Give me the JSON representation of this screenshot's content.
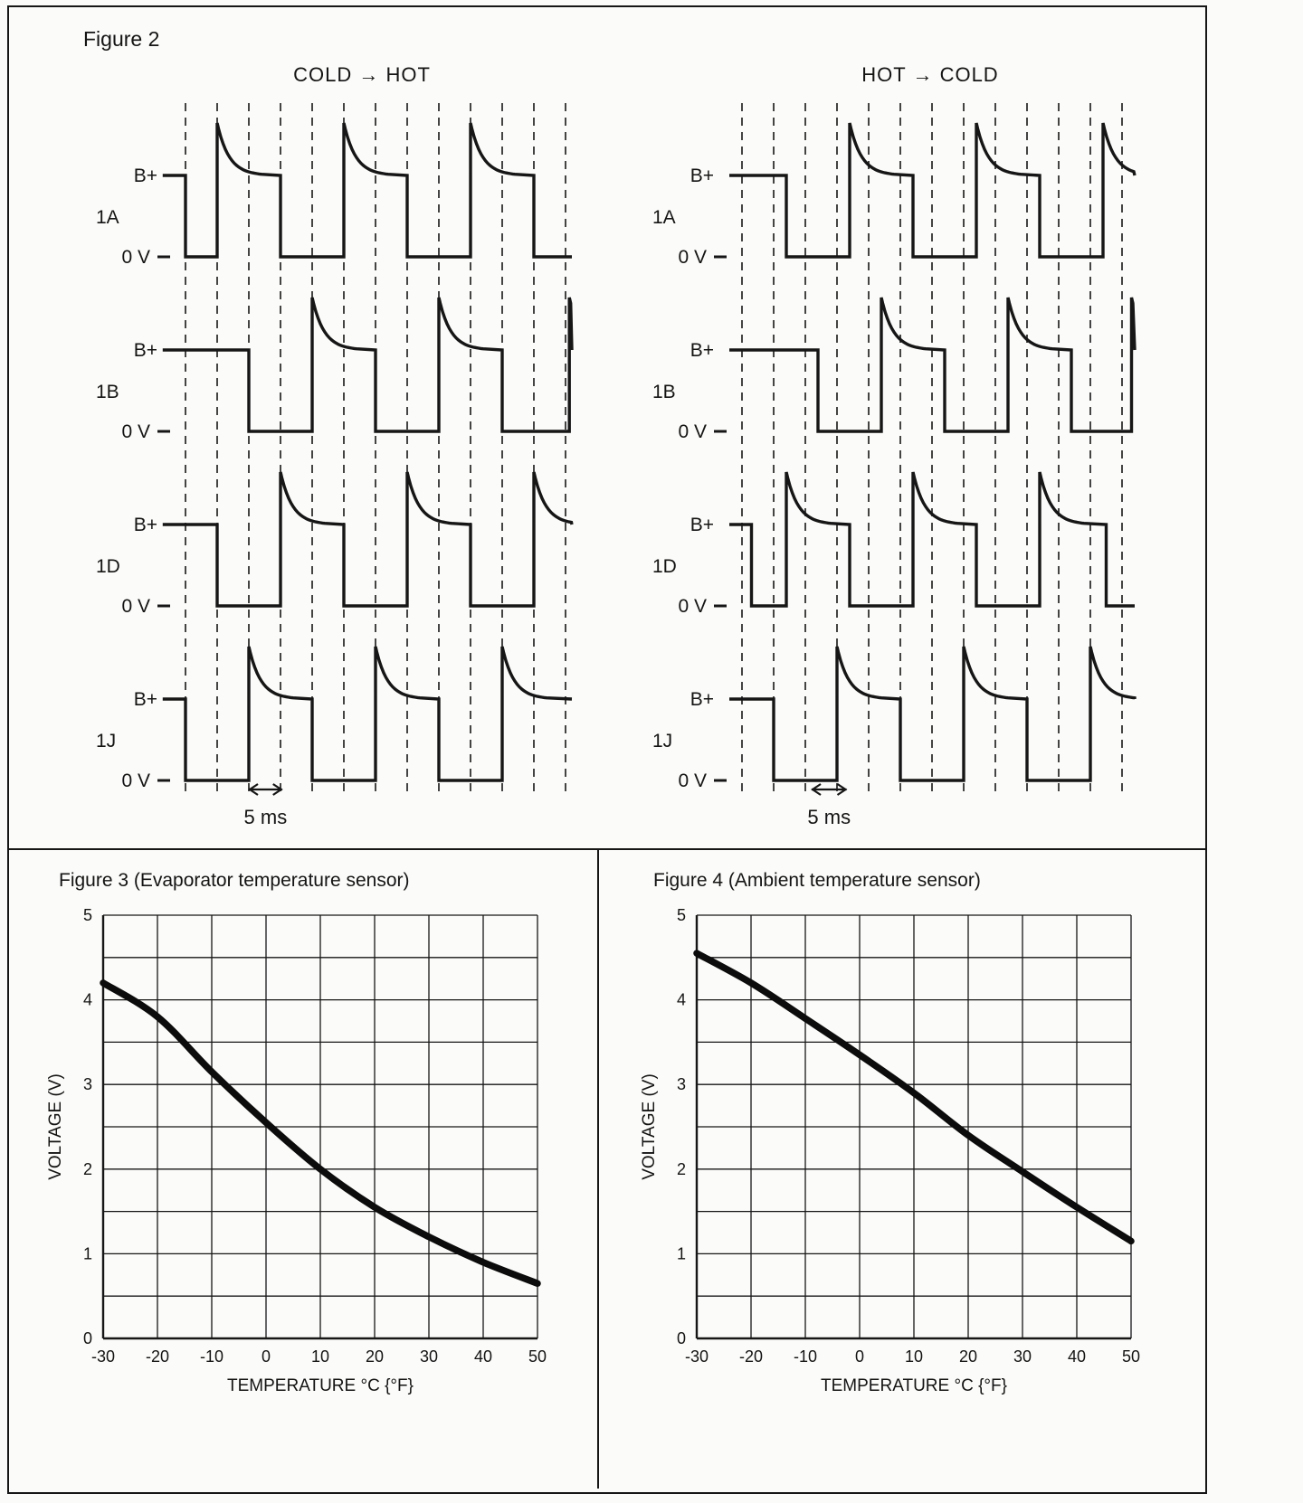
{
  "figure2": {
    "title": "Figure 2",
    "panels": [
      {
        "id": "cold-to-hot",
        "header": "COLD → HOT",
        "time_marker": {
          "label": "5 ms",
          "from_t": 2.0,
          "to_t": 3.05
        },
        "traces": [
          {
            "label": "1A",
            "high_label": "B+",
            "low_label": "0 V",
            "start_t": -0.72,
            "end_t": 12.2,
            "edges": [
              0,
              1,
              3,
              5,
              7,
              9,
              11
            ]
          },
          {
            "label": "1B",
            "high_label": "B+",
            "low_label": "0 V",
            "start_t": -0.72,
            "end_t": 12.2,
            "edges": [
              2,
              4,
              6,
              8,
              10,
              12.12
            ]
          },
          {
            "label": "1D",
            "high_label": "B+",
            "low_label": "0 V",
            "start_t": -0.72,
            "end_t": 12.2,
            "edges": [
              1,
              3,
              5,
              7,
              9,
              11
            ]
          },
          {
            "label": "1J",
            "high_label": "B+",
            "low_label": "0 V",
            "start_t": -0.72,
            "end_t": 12.2,
            "edges": [
              0,
              2,
              4,
              6,
              8,
              10
            ]
          }
        ]
      },
      {
        "id": "hot-to-cold",
        "header": "HOT → COLD",
        "time_marker": {
          "label": "5 ms",
          "from_t": 2.2,
          "to_t": 3.3
        },
        "traces": [
          {
            "label": "1A",
            "high_label": "B+",
            "low_label": "0 V",
            "start_t": -0.4,
            "end_t": 12.4,
            "edges": [
              1.4,
              3.4,
              5.4,
              7.4,
              9.4,
              11.4
            ]
          },
          {
            "label": "1B",
            "high_label": "B+",
            "low_label": "0 V",
            "start_t": -0.4,
            "end_t": 12.4,
            "edges": [
              2.4,
              4.4,
              6.4,
              8.4,
              10.4,
              12.3
            ]
          },
          {
            "label": "1D",
            "high_label": "B+",
            "low_label": "0 V",
            "start_t": -0.4,
            "end_t": 12.4,
            "edges": [
              0.3,
              1.4,
              3.4,
              5.4,
              7.4,
              9.4,
              11.5
            ]
          },
          {
            "label": "1J",
            "high_label": "B+",
            "low_label": "0 V",
            "start_t": -0.4,
            "end_t": 12.4,
            "edges": [
              1,
              3,
              5,
              7,
              9,
              11
            ]
          }
        ]
      }
    ],
    "gridline_count": 13
  },
  "chart_data": [
    {
      "type": "line",
      "title": "Figure 3 (Evaporator temperature sensor)",
      "xlabel": "TEMPERATURE  °C {°F}",
      "ylabel": "VOLTAGE (V)",
      "xlim": [
        -30,
        50
      ],
      "ylim": [
        0,
        5
      ],
      "xticks": [
        -30,
        -20,
        -10,
        0,
        10,
        20,
        30,
        40,
        50
      ],
      "yticks": [
        0,
        1,
        2,
        3,
        4,
        5
      ],
      "grid": {
        "x_step": 10,
        "y_step": 0.5,
        "visible": true
      },
      "legend": "none",
      "series": [
        {
          "name": "evaporator-temperature-sensor",
          "x": [
            -30,
            -20,
            -10,
            0,
            10,
            20,
            30,
            40,
            50
          ],
          "y": [
            4.2,
            3.8,
            3.15,
            2.55,
            2.0,
            1.55,
            1.2,
            0.9,
            0.65
          ]
        }
      ]
    },
    {
      "type": "line",
      "title": "Figure 4 (Ambient temperature sensor)",
      "xlabel": "TEMPERATURE  °C {°F}",
      "ylabel": "VOLTAGE (V)",
      "xlim": [
        -30,
        50
      ],
      "ylim": [
        0,
        5
      ],
      "xticks": [
        -30,
        -20,
        -10,
        0,
        10,
        20,
        30,
        40,
        50
      ],
      "yticks": [
        0,
        1,
        2,
        3,
        4,
        5
      ],
      "grid": {
        "x_step": 10,
        "y_step": 0.5,
        "visible": true
      },
      "legend": "none",
      "series": [
        {
          "name": "ambient-temperature-sensor",
          "x": [
            -30,
            -20,
            -10,
            0,
            10,
            20,
            30,
            40,
            50
          ],
          "y": [
            4.55,
            4.2,
            3.78,
            3.35,
            2.9,
            2.4,
            1.97,
            1.55,
            1.15
          ]
        }
      ]
    }
  ],
  "colors": {
    "ink": "#161616",
    "paper": "#fbfbf9"
  }
}
